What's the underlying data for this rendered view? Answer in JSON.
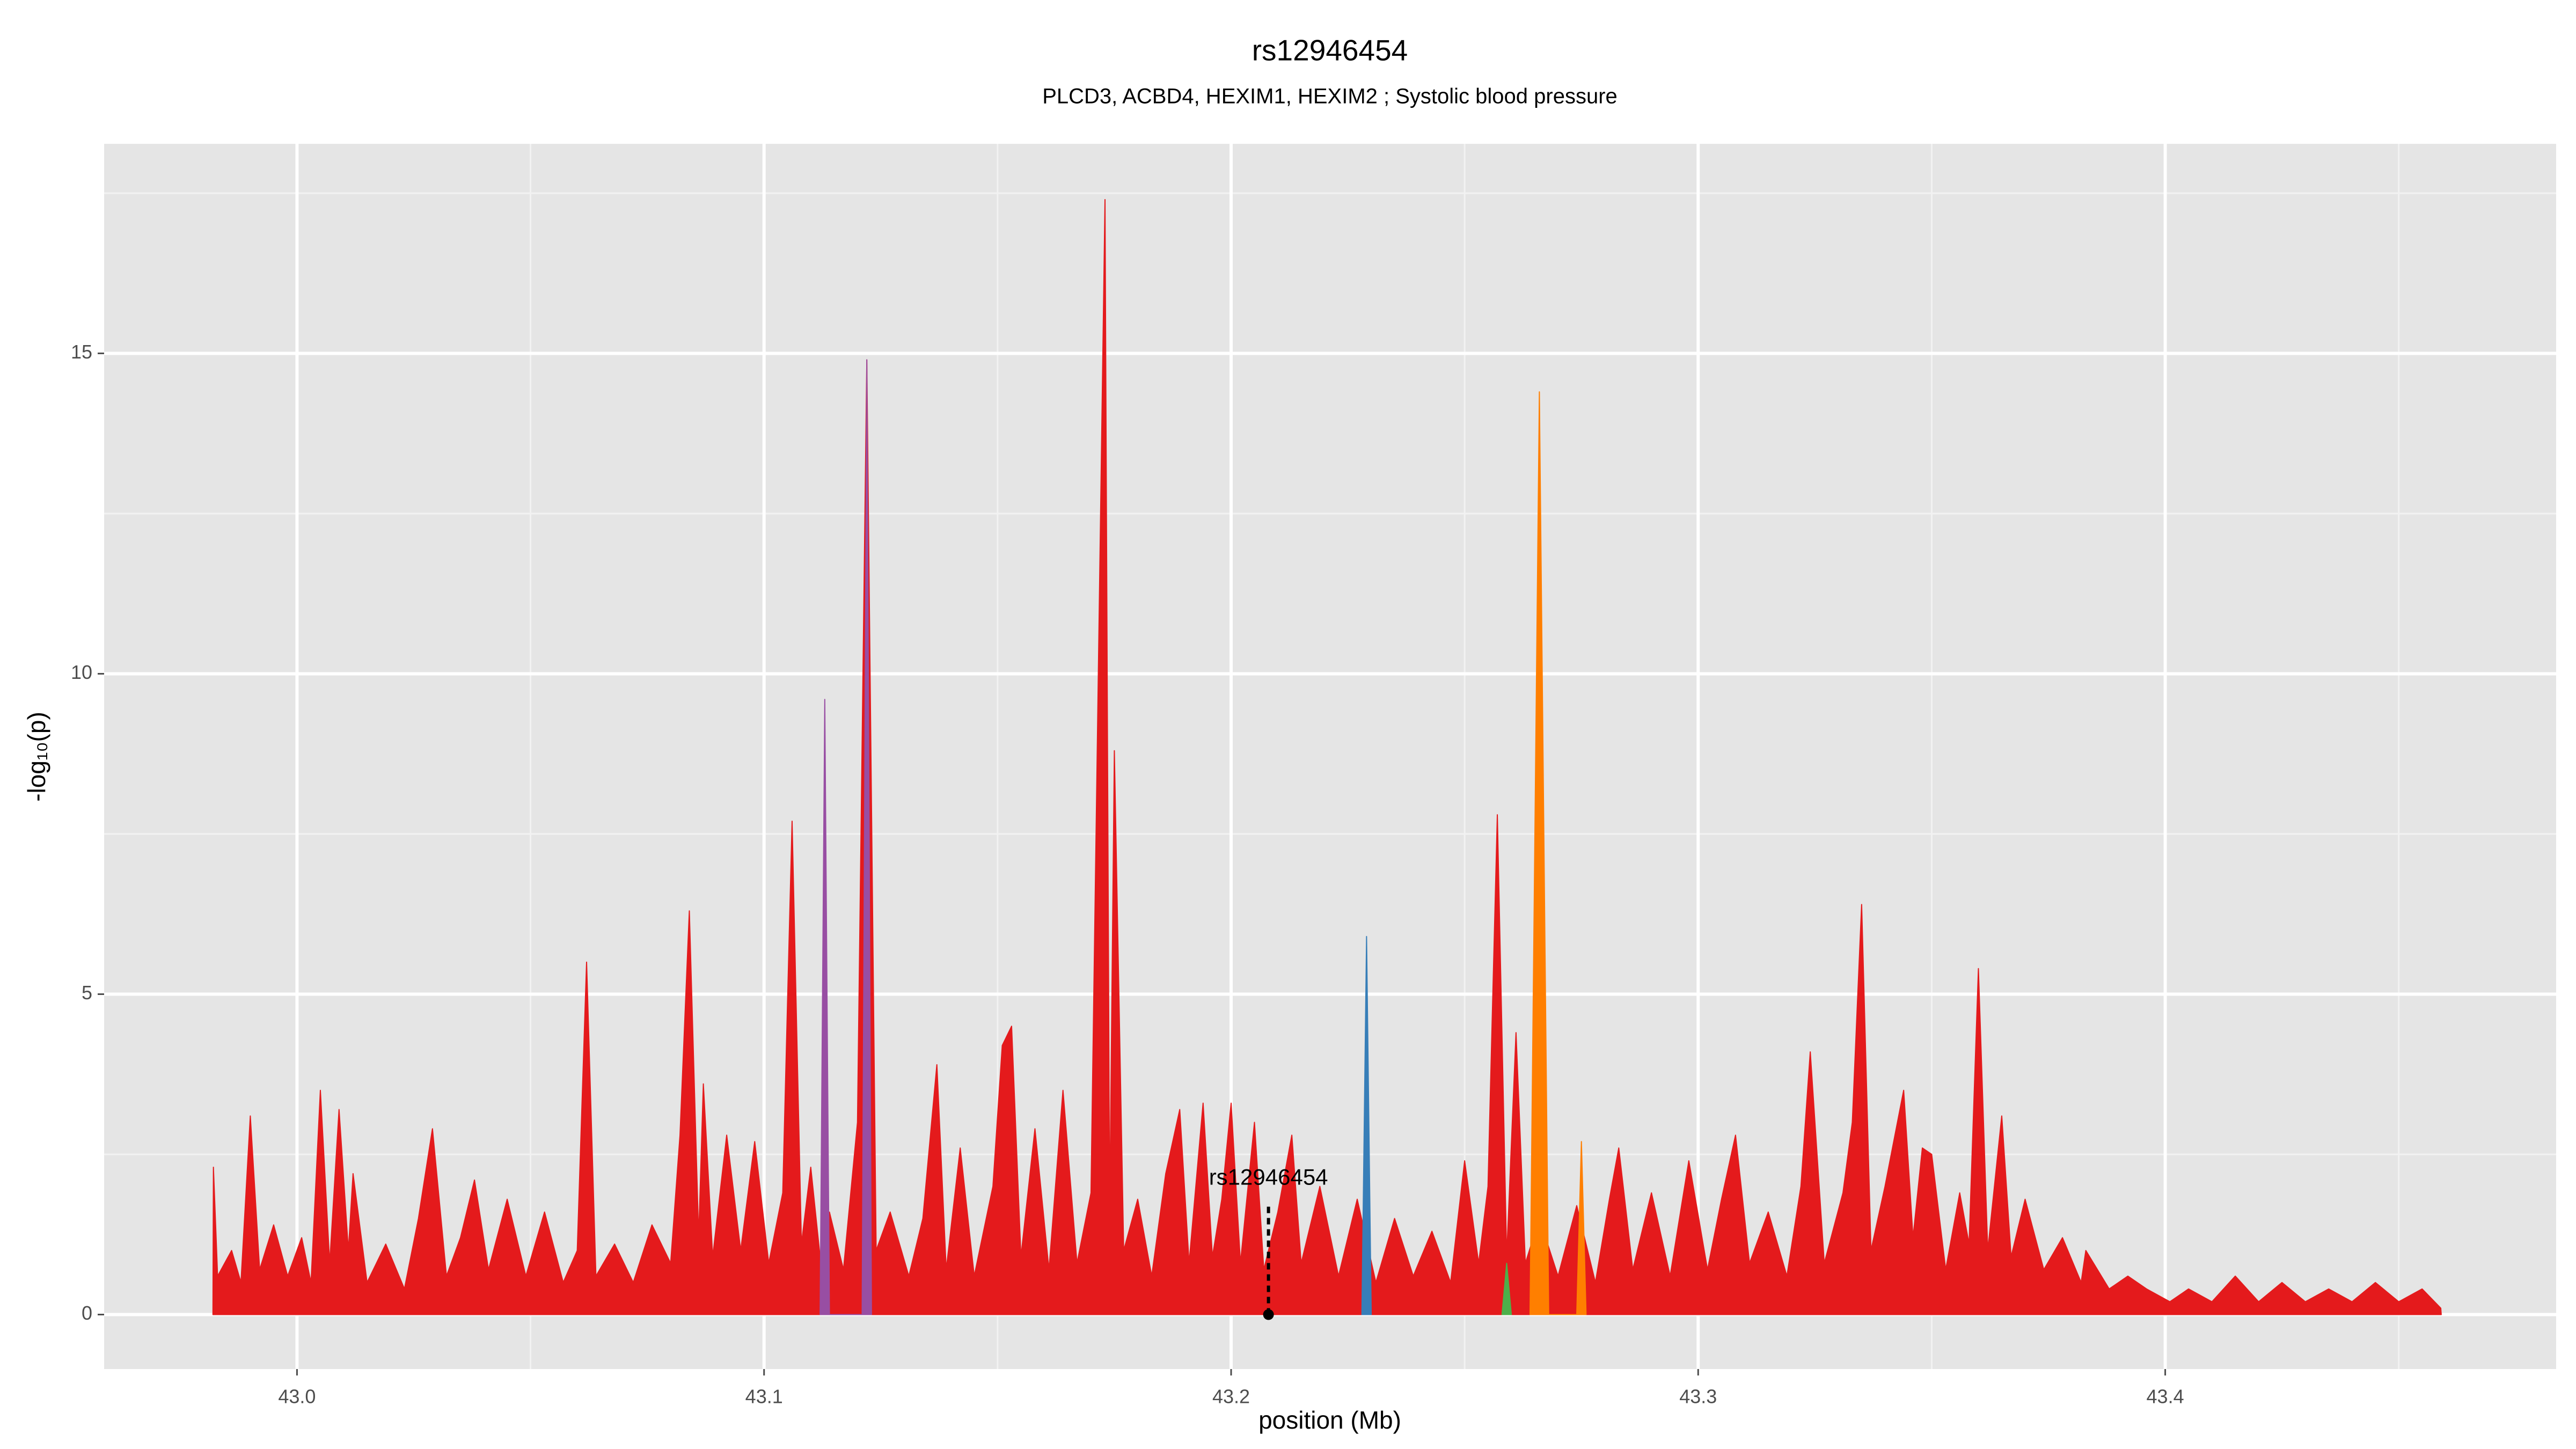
{
  "chart_data": {
    "type": "area",
    "title": "rs12946454",
    "subtitle": "PLCD3, ACBD4, HEXIM1, HEXIM2 ; Systolic blood pressure",
    "x_label": "position (Mb)",
    "y_label": "-log₁₀(p)",
    "xlim": [
      42.9587,
      43.4837
    ],
    "ylim": [
      -0.85,
      18.27
    ],
    "xticks": [
      {
        "value": 43,
        "label": "43.0"
      },
      43.1,
      43.2,
      43.3,
      43.4
    ],
    "yticks": [
      0,
      5,
      10,
      15
    ],
    "grid": true,
    "series": [
      {
        "color": "#e41a1c",
        "x": [
          42.982,
          42.9821,
          42.983,
          42.986,
          42.988,
          42.99,
          42.992,
          42.995,
          42.998,
          43.001,
          43.003,
          43.005,
          43.007,
          43.009,
          43.011,
          43.012,
          43.015,
          43.019,
          43.023,
          43.026,
          43.029,
          43.032,
          43.035,
          43.038,
          43.041,
          43.045,
          43.049,
          43.053,
          43.057,
          43.06,
          43.062,
          43.064,
          43.068,
          43.072,
          43.076,
          43.08,
          43.082,
          43.084,
          43.086,
          43.087,
          43.089,
          43.092,
          43.095,
          43.098,
          43.101,
          43.104,
          43.106,
          43.108,
          43.11,
          43.112,
          43.114,
          43.117,
          43.12,
          43.122,
          43.124,
          43.127,
          43.131,
          43.134,
          43.137,
          43.139,
          43.142,
          43.145,
          43.149,
          43.151,
          43.153,
          43.155,
          43.158,
          43.161,
          43.164,
          43.167,
          43.17,
          43.173,
          43.174,
          43.175,
          43.177,
          43.18,
          43.183,
          43.186,
          43.189,
          43.191,
          43.194,
          43.196,
          43.198,
          43.2,
          43.202,
          43.205,
          43.207,
          43.21,
          43.213,
          43.215,
          43.219,
          43.223,
          43.227,
          43.231,
          43.235,
          43.239,
          43.243,
          43.247,
          43.25,
          43.253,
          43.255,
          43.257,
          43.259,
          43.261,
          43.263,
          43.266,
          43.27,
          43.274,
          43.278,
          43.281,
          43.283,
          43.286,
          43.29,
          43.294,
          43.298,
          43.302,
          43.305,
          43.308,
          43.311,
          43.315,
          43.319,
          43.322,
          43.324,
          43.327,
          43.331,
          43.333,
          43.335,
          43.337,
          43.34,
          43.344,
          43.346,
          43.348,
          43.35,
          43.353,
          43.356,
          43.358,
          43.36,
          43.362,
          43.365,
          43.367,
          43.37,
          43.374,
          43.378,
          43.382,
          43.383,
          43.388,
          43.392,
          43.396,
          43.401,
          43.405,
          43.41,
          43.415,
          43.42,
          43.425,
          43.43,
          43.435,
          43.44,
          43.445,
          43.45,
          43.455,
          43.459,
          43.4591
        ],
        "values": [
          0,
          2.3,
          0.6,
          1,
          0.5,
          3.1,
          0.7,
          1.4,
          0.6,
          1.2,
          0.5,
          3.5,
          0.8,
          3.2,
          1,
          2.2,
          0.5,
          1.1,
          0.4,
          1.5,
          2.9,
          0.6,
          1.2,
          2.1,
          0.7,
          1.8,
          0.6,
          1.6,
          0.5,
          1,
          5.5,
          0.6,
          1.1,
          0.5,
          1.4,
          0.8,
          2.8,
          6.3,
          1.2,
          3.6,
          0.9,
          2.8,
          1,
          2.7,
          0.8,
          1.9,
          7.7,
          1.1,
          2.3,
          0.9,
          1.6,
          0.7,
          3,
          14.9,
          1,
          1.6,
          0.6,
          1.5,
          3.9,
          0.7,
          2.6,
          0.6,
          2,
          4.2,
          4.5,
          0.9,
          2.9,
          0.7,
          3.5,
          0.8,
          1.9,
          17.4,
          1.5,
          8.8,
          1,
          1.8,
          0.6,
          2.2,
          3.2,
          0.8,
          3.3,
          0.9,
          1.8,
          3.3,
          0.8,
          3,
          0.7,
          1.6,
          2.8,
          0.8,
          2,
          0.6,
          1.8,
          0.5,
          1.5,
          0.6,
          1.3,
          0.5,
          2.4,
          0.8,
          2,
          7.8,
          0.9,
          4.4,
          0.8,
          1.5,
          0.6,
          1.7,
          0.5,
          1.8,
          2.6,
          0.7,
          1.9,
          0.6,
          2.4,
          0.7,
          1.8,
          2.8,
          0.8,
          1.6,
          0.6,
          2,
          4.1,
          0.8,
          1.9,
          3,
          6.4,
          1,
          2,
          3.5,
          1.2,
          2.6,
          2.5,
          0.7,
          1.9,
          1.1,
          5.4,
          1,
          3.1,
          0.9,
          1.8,
          0.7,
          1.2,
          0.5,
          1,
          0.4,
          0.6,
          0.4,
          0.2,
          0.4,
          0.2,
          0.6,
          0.2,
          0.5,
          0.2,
          0.4,
          0.2,
          0.5,
          0.2,
          0.4,
          0.1,
          0
        ]
      },
      {
        "color": "#ff7f00",
        "x": [
          43.264,
          43.266,
          43.268,
          43.274,
          43.275,
          43.276
        ],
        "values": [
          0,
          14.4,
          0,
          0,
          2.7,
          0
        ]
      },
      {
        "color": "#984ea3",
        "x": [
          43.112,
          43.113,
          43.114,
          43.121,
          43.122,
          43.123
        ],
        "values": [
          0,
          9.6,
          0,
          0,
          14.9,
          0
        ]
      },
      {
        "color": "#377eb8",
        "x": [
          43.228,
          43.229,
          43.23
        ],
        "values": [
          0,
          5.9,
          0
        ]
      },
      {
        "color": "#4daf4a",
        "x": [
          43.258,
          43.259,
          43.26
        ],
        "values": [
          0,
          0.8,
          0
        ]
      }
    ],
    "annotation": {
      "text": "rs12946454",
      "x": 43.208,
      "y": 0,
      "line_top": 1.7
    }
  }
}
